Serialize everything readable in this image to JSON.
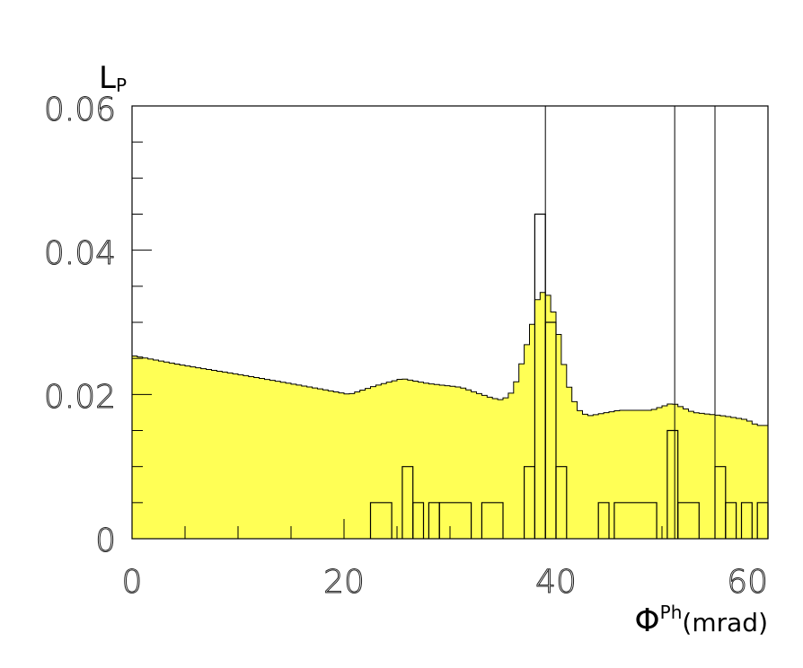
{
  "chart_data": {
    "type": "histogram",
    "title": "",
    "ylabel": {
      "main": "L",
      "subscript": "P"
    },
    "xlabel": {
      "main": "Φ",
      "superscript": "Ph",
      "unit": "(mrad)"
    },
    "xlim": [
      0,
      60
    ],
    "ylim": [
      0,
      0.06
    ],
    "x_ticks": [
      "0",
      "20",
      "40",
      "60"
    ],
    "y_ticks": [
      "0",
      "0.02",
      "0.04",
      "0.06"
    ],
    "bin_width": 0.5,
    "fill_color": "#ffff55",
    "line_color": "#000000",
    "vertical_lines_x": [
      39.0,
      51.2,
      55.0
    ],
    "series": [
      {
        "style": "filled",
        "points": [
          [
            0,
            0.0254
          ],
          [
            5,
            0.024
          ],
          [
            10,
            0.0228
          ],
          [
            15,
            0.0215
          ],
          [
            18,
            0.0207
          ],
          [
            20.5,
            0.02
          ],
          [
            23,
            0.0212
          ],
          [
            25.5,
            0.0222
          ],
          [
            28,
            0.0215
          ],
          [
            31,
            0.021
          ],
          [
            34,
            0.0195
          ],
          [
            35,
            0.0192
          ],
          [
            36,
            0.0205
          ],
          [
            37,
            0.0255
          ],
          [
            37.8,
            0.03
          ],
          [
            38.3,
            0.0335
          ],
          [
            39,
            0.0345
          ],
          [
            39.5,
            0.033
          ],
          [
            40.3,
            0.028
          ],
          [
            41,
            0.022
          ],
          [
            42,
            0.018
          ],
          [
            43,
            0.017
          ],
          [
            46,
            0.0178
          ],
          [
            49,
            0.0178
          ],
          [
            51,
            0.0188
          ],
          [
            53,
            0.0175
          ],
          [
            56,
            0.017
          ],
          [
            58,
            0.0165
          ],
          [
            59,
            0.0157
          ],
          [
            60,
            0.0157
          ]
        ]
      },
      {
        "style": "outline",
        "bins": [
          [
            22.5,
            24.5,
            0.005
          ],
          [
            25.5,
            26.5,
            0.01
          ],
          [
            26.5,
            27.5,
            0.005
          ],
          [
            28.0,
            29.0,
            0.005
          ],
          [
            29.0,
            32.0,
            0.005
          ],
          [
            33.0,
            35.0,
            0.005
          ],
          [
            37.0,
            38.0,
            0.01
          ],
          [
            38.0,
            39.0,
            0.045
          ],
          [
            39.0,
            40.0,
            0.03
          ],
          [
            40.0,
            41.0,
            0.01
          ],
          [
            44.0,
            45.0,
            0.005
          ],
          [
            45.5,
            49.5,
            0.005
          ],
          [
            50.5,
            51.5,
            0.015
          ],
          [
            51.5,
            53.5,
            0.005
          ],
          [
            55.0,
            56.0,
            0.01
          ],
          [
            56.0,
            57.0,
            0.005
          ],
          [
            57.5,
            58.5,
            0.005
          ],
          [
            59.0,
            60.0,
            0.005
          ]
        ]
      }
    ]
  }
}
